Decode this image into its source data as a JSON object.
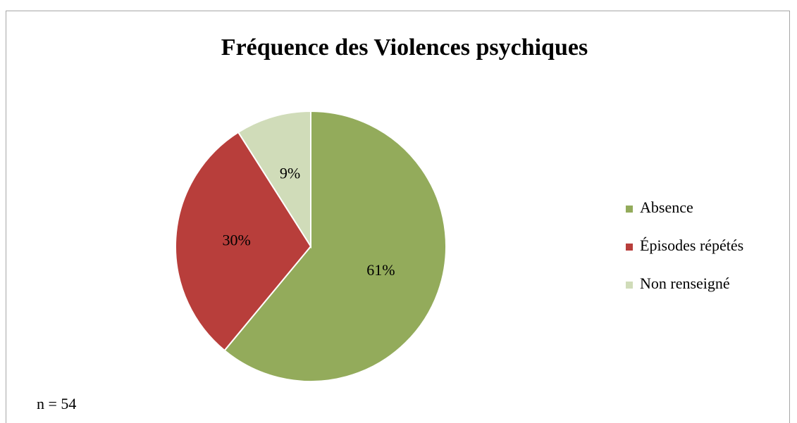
{
  "chart_data": {
    "type": "pie",
    "title": "Fréquence des Violences psychiques",
    "categories": [
      "Absence",
      "Épisodes répétés",
      "Non renseigné"
    ],
    "values": [
      61,
      30,
      9
    ],
    "value_labels": [
      "61%",
      "30%",
      "9%"
    ],
    "colors": [
      "#93ab5b",
      "#b83e3b",
      "#d0dcb9"
    ],
    "legend": "right",
    "annotation": "n = 54"
  }
}
